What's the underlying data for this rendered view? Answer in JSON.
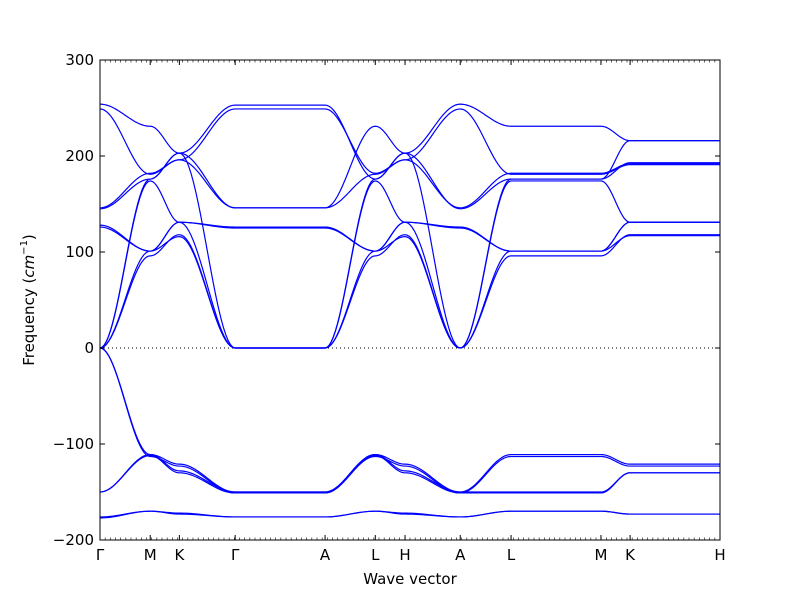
{
  "chart_data": {
    "type": "line",
    "title": "",
    "xlabel": "Wave vector",
    "ylabel": "Frequency",
    "ylabel_unit": "cm",
    "ylabel_unit_exponent": "−1",
    "ylim": [
      -200,
      300
    ],
    "y_ticks": [
      -200,
      -100,
      0,
      100,
      200,
      300
    ],
    "y_tick_labels": [
      "−200",
      "−100",
      "0",
      "100",
      "200",
      "300"
    ],
    "x_ticks": [
      {
        "label": "Γ",
        "pos": 0.0
      },
      {
        "label": "M",
        "pos": 0.081
      },
      {
        "label": "K",
        "pos": 0.128
      },
      {
        "label": "Γ",
        "pos": 0.218
      },
      {
        "label": "A",
        "pos": 0.363
      },
      {
        "label": "L",
        "pos": 0.444
      },
      {
        "label": "H",
        "pos": 0.492
      },
      {
        "label": "A",
        "pos": 0.581
      },
      {
        "label": "L",
        "pos": 0.663
      },
      {
        "label": "M",
        "pos": 0.808
      },
      {
        "label": "K",
        "pos": 0.855
      },
      {
        "label": "H",
        "pos": 1.0
      }
    ],
    "zero_line": "dotted",
    "line_color": "#0000ff",
    "series": [
      {
        "x": [
          0,
          0.081,
          0.128,
          0.218,
          0.363,
          0.444,
          0.492,
          0.581,
          0.663,
          0.808,
          0.855,
          1.0
        ],
        "y": [
          0,
          -111,
          -121,
          -150,
          -150,
          -111,
          -121,
          -150,
          -111,
          -111,
          -121,
          -121
        ]
      },
      {
        "x": [
          0,
          0.081,
          0.128,
          0.218,
          0.363,
          0.444,
          0.492,
          0.581,
          0.663,
          0.808,
          0.855,
          1.0
        ],
        "y": [
          0,
          -113,
          -123,
          -151,
          -151,
          -113,
          -123,
          -151,
          -113,
          -113,
          -123,
          -123
        ]
      },
      {
        "x": [
          0,
          0.081,
          0.128,
          0.218,
          0.363,
          0.444,
          0.492,
          0.581,
          0.663,
          0.808,
          0.855,
          1.0
        ],
        "y": [
          0,
          96,
          118,
          0,
          0,
          96,
          118,
          0,
          96,
          96,
          118,
          118
        ]
      },
      {
        "x": [
          0,
          0.081,
          0.128,
          0.218,
          0.363,
          0.444,
          0.492,
          0.581,
          0.663,
          0.808,
          0.855,
          1.0
        ],
        "y": [
          0,
          101,
          116,
          0,
          0,
          101,
          116,
          0,
          101,
          101,
          117,
          117
        ]
      },
      {
        "x": [
          0,
          0.081,
          0.128,
          0.218,
          0.363,
          0.444,
          0.492,
          0.581,
          0.663,
          0.808,
          0.855,
          1.0
        ],
        "y": [
          0,
          174,
          131,
          0,
          0,
          174,
          131,
          0,
          174,
          174,
          131,
          131
        ]
      },
      {
        "x": [
          0,
          0.081,
          0.128,
          0.218,
          0.363,
          0.444,
          0.492,
          0.581,
          0.663,
          0.808,
          0.855,
          1.0
        ],
        "y": [
          0,
          176,
          203,
          0,
          0,
          176,
          203,
          0,
          176,
          176,
          193,
          193
        ]
      },
      {
        "x": [
          0,
          0.081,
          0.128,
          0.218,
          0.363,
          0.444,
          0.492,
          0.581,
          0.663,
          0.808,
          0.855,
          1.0
        ],
        "y": [
          -150,
          -111,
          -128,
          -150,
          -150,
          -111,
          -128,
          -150,
          -150,
          -150,
          -130,
          -130
        ]
      },
      {
        "x": [
          0,
          0.081,
          0.128,
          0.218,
          0.363,
          0.444,
          0.492,
          0.581,
          0.663,
          0.808,
          0.855,
          1.0
        ],
        "y": [
          -150,
          -112,
          -130,
          -151,
          -151,
          -112,
          -130,
          -151,
          -151,
          -151,
          -130,
          -130
        ]
      },
      {
        "x": [
          0,
          0.081,
          0.128,
          0.218,
          0.363,
          0.444,
          0.492,
          0.581,
          0.663,
          0.808,
          0.855,
          1.0
        ],
        "y": [
          -177,
          -170,
          -173,
          -176,
          -176,
          -170,
          -173,
          -176,
          -170,
          -170,
          -173,
          -173
        ]
      },
      {
        "x": [
          0,
          0.081,
          0.128,
          0.218,
          0.363,
          0.444,
          0.492,
          0.581,
          0.663,
          0.808,
          0.855,
          1.0
        ],
        "y": [
          -176,
          -170,
          -172,
          -176,
          -176,
          -170,
          -172,
          -176,
          -170,
          -170,
          -173,
          -173
        ]
      },
      {
        "x": [
          0,
          0.081,
          0.128,
          0.218,
          0.363,
          0.444,
          0.492,
          0.581,
          0.663,
          0.808,
          0.855,
          1.0
        ],
        "y": [
          126,
          101,
          131,
          125,
          125,
          101,
          131,
          125,
          101,
          101,
          131,
          131
        ]
      },
      {
        "x": [
          0,
          0.081,
          0.128,
          0.218,
          0.363,
          0.444,
          0.492,
          0.581,
          0.663,
          0.808,
          0.855,
          1.0
        ],
        "y": [
          128,
          101,
          131,
          126,
          126,
          101,
          131,
          126,
          101,
          101,
          131,
          131
        ]
      },
      {
        "x": [
          0,
          0.081,
          0.128,
          0.218,
          0.363,
          0.444,
          0.492,
          0.581,
          0.663,
          0.808,
          0.855,
          1.0
        ],
        "y": [
          145,
          176,
          203,
          253,
          253,
          176,
          203,
          145,
          176,
          176,
          216,
          216
        ]
      },
      {
        "x": [
          0,
          0.081,
          0.128,
          0.218,
          0.363,
          0.444,
          0.492,
          0.581,
          0.663,
          0.808,
          0.855,
          1.0
        ],
        "y": [
          146,
          182,
          196,
          249,
          249,
          182,
          196,
          146,
          182,
          182,
          192,
          192
        ]
      },
      {
        "x": [
          0,
          0.081,
          0.128,
          0.218,
          0.363,
          0.444,
          0.492,
          0.581,
          0.663,
          0.808,
          0.855,
          1.0
        ],
        "y": [
          254,
          231,
          203,
          146,
          146,
          231,
          203,
          254,
          231,
          231,
          216,
          216
        ]
      },
      {
        "x": [
          0,
          0.081,
          0.128,
          0.218,
          0.363,
          0.444,
          0.492,
          0.581,
          0.663,
          0.808,
          0.855,
          1.0
        ],
        "y": [
          249,
          181,
          196,
          146,
          146,
          181,
          196,
          249,
          181,
          181,
          191,
          191
        ]
      }
    ]
  }
}
